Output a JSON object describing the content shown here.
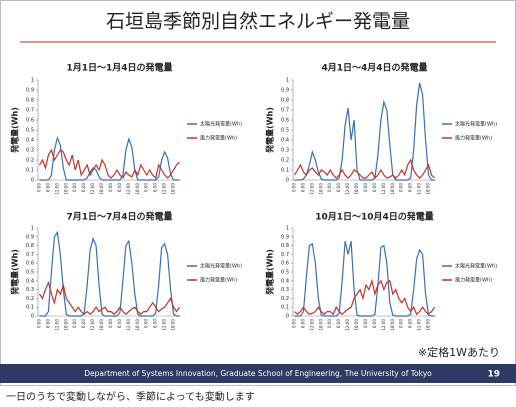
{
  "slide": {
    "title": "石垣島季節別自然エネルギー発電量",
    "note": "※定格1Wあたり",
    "footer": "Department of Systems Innovation, Graduate School of Engineering, The University of Tokyo",
    "page_number": "19",
    "caption": "一日のうちで変動しながら、季節によっても変動します"
  },
  "chart_data": [
    {
      "type": "line",
      "title": "1月1日～1月4日の発電量",
      "y_label": "発電量(Wh)",
      "ylim": [
        0,
        1
      ],
      "yticks": [
        0,
        0.1,
        0.2,
        0.3,
        0.4,
        0.5,
        0.6,
        0.7,
        0.8,
        0.9,
        1
      ],
      "grid": false,
      "legend": "right",
      "categories": [
        "0:00",
        null,
        null,
        "6:00",
        null,
        null,
        "12:00",
        null,
        null,
        "18:00",
        null,
        null,
        "0:00",
        null,
        null,
        "6:00",
        null,
        null,
        "12:00",
        null,
        null,
        "18:00",
        null,
        null,
        "0:00",
        null,
        null,
        "6:00",
        null,
        null,
        "12:00",
        null,
        null,
        "18:00",
        null,
        null,
        "0:00",
        null,
        null,
        "6:00",
        null,
        null,
        "12:00",
        null,
        null,
        "18:00",
        null,
        null
      ],
      "series": [
        {
          "name": "太陽光発電量(Wh)",
          "color": "#3a6fb5",
          "values": [
            0,
            0,
            0,
            0,
            0.05,
            0.3,
            0.42,
            0.35,
            0.12,
            0,
            0,
            0,
            0,
            0,
            0,
            0,
            0.02,
            0.08,
            0.12,
            0.1,
            0.03,
            0,
            0,
            0,
            0,
            0,
            0,
            0,
            0.05,
            0.3,
            0.41,
            0.33,
            0.1,
            0,
            0,
            0,
            0,
            0,
            0,
            0,
            0.03,
            0.2,
            0.28,
            0.22,
            0.06,
            0,
            0,
            0
          ]
        },
        {
          "name": "風力発電量(Wh)",
          "color": "#c0322b",
          "values": [
            0.15,
            0.2,
            0.12,
            0.25,
            0.3,
            0.2,
            0.25,
            0.3,
            0.28,
            0.2,
            0.15,
            0.25,
            0.1,
            0.2,
            0.05,
            0.1,
            0.15,
            0.05,
            0.1,
            0.15,
            0.1,
            0.2,
            0.15,
            0.05,
            0.02,
            0.05,
            0.1,
            0.05,
            0.02,
            0.08,
            0.05,
            0.03,
            0.1,
            0.05,
            0.15,
            0.1,
            0.05,
            0.1,
            0.05,
            0.02,
            0.15,
            0.1,
            0.05,
            0.02,
            0.05,
            0.1,
            0.15,
            0.18
          ]
        }
      ]
    },
    {
      "type": "line",
      "title": "4月1日～4月4日の発電量",
      "y_label": "発電量(Wh)",
      "ylim": [
        0,
        1
      ],
      "yticks": [
        0,
        0.1,
        0.2,
        0.3,
        0.4,
        0.5,
        0.6,
        0.7,
        0.8,
        0.9,
        1
      ],
      "grid": false,
      "legend": "right",
      "categories": [
        "0:00",
        null,
        null,
        "6:00",
        null,
        null,
        "12:00",
        null,
        null,
        "18:00",
        null,
        null,
        "0:00",
        null,
        null,
        "6:00",
        null,
        null,
        "12:00",
        null,
        null,
        "18:00",
        null,
        null,
        "0:00",
        null,
        null,
        "6:00",
        null,
        null,
        "12:00",
        null,
        null,
        "18:00",
        null,
        null,
        "0:00",
        null,
        null,
        "6:00",
        null,
        null,
        "12:00",
        null,
        null,
        "18:00",
        null,
        null
      ],
      "series": [
        {
          "name": "太陽光発電量(Wh)",
          "color": "#3a6fb5",
          "values": [
            0,
            0,
            0,
            0.01,
            0.05,
            0.15,
            0.28,
            0.2,
            0.08,
            0.01,
            0,
            0,
            0,
            0,
            0,
            0.02,
            0.2,
            0.55,
            0.72,
            0.4,
            0.6,
            0.1,
            0,
            0,
            0,
            0,
            0,
            0.02,
            0.25,
            0.6,
            0.78,
            0.7,
            0.35,
            0.05,
            0,
            0,
            0,
            0,
            0,
            0.02,
            0.3,
            0.75,
            0.97,
            0.85,
            0.4,
            0.05,
            0,
            0
          ]
        },
        {
          "name": "風力発電量(Wh)",
          "color": "#c0322b",
          "values": [
            0.05,
            0.1,
            0.15,
            0.08,
            0.05,
            0.1,
            0.12,
            0.08,
            0.05,
            0.1,
            0.08,
            0.05,
            0.1,
            0.05,
            0.02,
            0.05,
            0.1,
            0.05,
            0.02,
            0.05,
            0.1,
            0.08,
            0.05,
            0.02,
            0.02,
            0.05,
            0.08,
            0.02,
            0.05,
            0.1,
            0.05,
            0.02,
            0.03,
            0.05,
            0.02,
            0.05,
            0.1,
            0.05,
            0.15,
            0.2,
            0.1,
            0.05,
            0.02,
            0.05,
            0.1,
            0.15,
            0.05,
            0.02
          ]
        }
      ]
    },
    {
      "type": "line",
      "title": "7月1日～7月4日の発電量",
      "y_label": "発電量(Wh)",
      "ylim": [
        0,
        1
      ],
      "yticks": [
        0,
        0.1,
        0.2,
        0.3,
        0.4,
        0.5,
        0.6,
        0.7,
        0.8,
        0.9,
        1
      ],
      "grid": false,
      "legend": "right",
      "categories": [
        "0:00",
        null,
        null,
        "6:00",
        null,
        null,
        "12:00",
        null,
        null,
        "18:00",
        null,
        null,
        "0:00",
        null,
        null,
        "6:00",
        null,
        null,
        "12:00",
        null,
        null,
        "18:00",
        null,
        null,
        "0:00",
        null,
        null,
        "6:00",
        null,
        null,
        "12:00",
        null,
        null,
        "18:00",
        null,
        null,
        "0:00",
        null,
        null,
        "6:00",
        null,
        null,
        "12:00",
        null,
        null,
        "18:00",
        null,
        null
      ],
      "series": [
        {
          "name": "太陽光発電量(Wh)",
          "color": "#3a6fb5",
          "values": [
            0,
            0,
            0,
            0.05,
            0.5,
            0.9,
            0.95,
            0.7,
            0.3,
            0.02,
            0,
            0,
            0,
            0,
            0,
            0.03,
            0.35,
            0.75,
            0.88,
            0.8,
            0.35,
            0.02,
            0,
            0,
            0,
            0,
            0,
            0.04,
            0.4,
            0.8,
            0.85,
            0.6,
            0.25,
            0.02,
            0,
            0,
            0,
            0,
            0,
            0.03,
            0.35,
            0.78,
            0.82,
            0.7,
            0.3,
            0.02,
            0,
            0
          ]
        },
        {
          "name": "風力発電量(Wh)",
          "color": "#c0322b",
          "values": [
            0.25,
            0.2,
            0.3,
            0.38,
            0.25,
            0.15,
            0.3,
            0.25,
            0.35,
            0.2,
            0.15,
            0.1,
            0.05,
            0.1,
            0.05,
            0.02,
            0.05,
            0.02,
            0.05,
            0.1,
            0.05,
            0.08,
            0.1,
            0.05,
            0.05,
            0.02,
            0.05,
            0.1,
            0.05,
            0.02,
            0.05,
            0.08,
            0.1,
            0.05,
            0.02,
            0.05,
            0.05,
            0.1,
            0.15,
            0.1,
            0.05,
            0.08,
            0.1,
            0.15,
            0.2,
            0.1,
            0.05,
            0.1
          ]
        }
      ]
    },
    {
      "type": "line",
      "title": "10月1日～10月4日の発電量",
      "y_label": "発電量(Wh)",
      "ylim": [
        0,
        1
      ],
      "yticks": [
        0,
        0.1,
        0.2,
        0.3,
        0.4,
        0.5,
        0.6,
        0.7,
        0.8,
        0.9,
        1
      ],
      "grid": false,
      "legend": "right",
      "categories": [
        "0:00",
        null,
        null,
        "6:00",
        null,
        null,
        "12:00",
        null,
        null,
        "18:00",
        null,
        null,
        "0:00",
        null,
        null,
        "6:00",
        null,
        null,
        "12:00",
        null,
        null,
        "18:00",
        null,
        null,
        "0:00",
        null,
        null,
        "6:00",
        null,
        null,
        "12:00",
        null,
        null,
        "18:00",
        null,
        null,
        "0:00",
        null,
        null,
        "6:00",
        null,
        null,
        "12:00",
        null,
        null,
        "18:00",
        null,
        null
      ],
      "series": [
        {
          "name": "太陽光発電量(Wh)",
          "color": "#3a6fb5",
          "values": [
            0,
            0,
            0,
            0.05,
            0.45,
            0.8,
            0.82,
            0.6,
            0.2,
            0.01,
            0,
            0,
            0,
            0,
            0,
            0.03,
            0.4,
            0.85,
            0.7,
            0.85,
            0.3,
            0.01,
            0,
            0,
            0,
            0,
            0,
            0.02,
            0.35,
            0.78,
            0.8,
            0.6,
            0.15,
            0.01,
            0,
            0,
            0,
            0,
            0,
            0.02,
            0.3,
            0.65,
            0.75,
            0.7,
            0.25,
            0.01,
            0,
            0
          ]
        },
        {
          "name": "風力発電量(Wh)",
          "color": "#c0322b",
          "values": [
            0.05,
            0.02,
            0.05,
            0.1,
            0.05,
            0.02,
            0.03,
            0.05,
            0.1,
            0.05,
            0.02,
            0.05,
            0.05,
            0.02,
            0.1,
            0.05,
            0.02,
            0.05,
            0.08,
            0.1,
            0.2,
            0.25,
            0.3,
            0.2,
            0.35,
            0.3,
            0.4,
            0.25,
            0.35,
            0.4,
            0.3,
            0.38,
            0.4,
            0.25,
            0.3,
            0.2,
            0.15,
            0.2,
            0.1,
            0.05,
            0.1,
            0.02,
            0.05,
            0.1,
            0.05,
            0.02,
            0.05,
            0.1
          ]
        }
      ]
    }
  ]
}
